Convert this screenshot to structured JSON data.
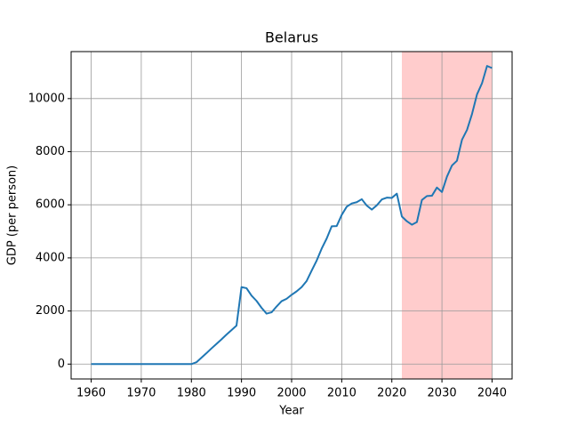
{
  "chart_data": {
    "type": "line",
    "title": "Belarus",
    "x_label": "Year",
    "y_label": "GDP (per person)",
    "x": [
      1960,
      1961,
      1962,
      1963,
      1964,
      1965,
      1966,
      1967,
      1968,
      1969,
      1970,
      1971,
      1972,
      1973,
      1974,
      1975,
      1976,
      1977,
      1978,
      1979,
      1980,
      1981,
      1982,
      1983,
      1984,
      1985,
      1986,
      1987,
      1988,
      1989,
      1990,
      1991,
      1992,
      1993,
      1994,
      1995,
      1996,
      1997,
      1998,
      1999,
      2000,
      2001,
      2002,
      2003,
      2004,
      2005,
      2006,
      2007,
      2008,
      2009,
      2010,
      2011,
      2012,
      2013,
      2014,
      2015,
      2016,
      2017,
      2018,
      2019,
      2020,
      2021,
      2022,
      2023,
      2024,
      2025,
      2026,
      2027,
      2028,
      2029,
      2030,
      2031,
      2032,
      2033,
      2034,
      2035,
      2036,
      2037,
      2038,
      2039,
      2040
    ],
    "values": [
      0,
      0,
      0,
      0,
      0,
      0,
      0,
      0,
      0,
      0,
      0,
      0,
      0,
      0,
      0,
      0,
      0,
      0,
      0,
      0,
      0,
      70,
      240,
      410,
      590,
      760,
      930,
      1110,
      1280,
      1450,
      2900,
      2860,
      2580,
      2380,
      2120,
      1900,
      1950,
      2170,
      2370,
      2460,
      2610,
      2740,
      2900,
      3130,
      3520,
      3900,
      4350,
      4730,
      5190,
      5200,
      5620,
      5930,
      6050,
      6100,
      6210,
      5970,
      5820,
      5980,
      6200,
      6270,
      6260,
      6420,
      5560,
      5380,
      5250,
      5350,
      6180,
      6330,
      6340,
      6650,
      6480,
      7060,
      7480,
      7660,
      8450,
      8820,
      9420,
      10160,
      10580,
      11230,
      11150
    ],
    "color": "#1f77b4",
    "xlim": [
      1956,
      2044
    ],
    "xticks": [
      1960,
      1970,
      1980,
      1990,
      2000,
      2010,
      2020,
      2030,
      2040
    ],
    "ylim": [
      -560,
      11770
    ],
    "yticks": [
      0,
      2000,
      4000,
      6000,
      8000,
      10000
    ],
    "grid": true,
    "highlight_span": [
      2022,
      2040
    ],
    "highlight_color": "#ffcccc"
  }
}
